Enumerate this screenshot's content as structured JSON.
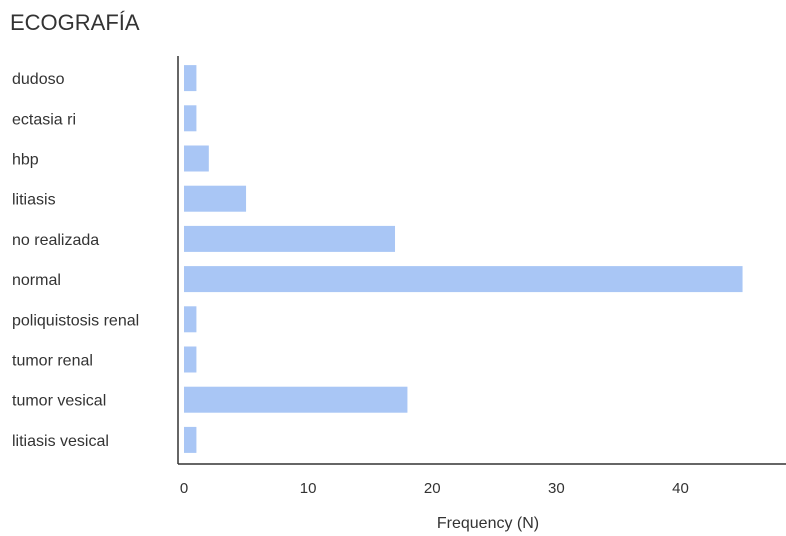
{
  "chart_data": {
    "type": "bar",
    "orientation": "horizontal",
    "title": "ECOGRAFÍA",
    "xlabel": "Frequency (N)",
    "ylabel": "",
    "categories": [
      "dudoso",
      "ectasia ri",
      "hbp",
      "litiasis",
      "no realizada",
      "normal",
      "poliquistosis renal",
      "tumor renal",
      "tumor vesical",
      "litiasis vesical"
    ],
    "values": [
      1,
      1,
      2,
      5,
      17,
      45,
      1,
      1,
      18,
      1
    ],
    "xlim": [
      0,
      48.5
    ],
    "xticks": [
      "0",
      "10",
      "20",
      "30",
      "40"
    ],
    "xtick_values": [
      0,
      10,
      20,
      30,
      40
    ],
    "bar_color": "#a9c6f5",
    "axis_color": "#333333",
    "grid": false
  }
}
